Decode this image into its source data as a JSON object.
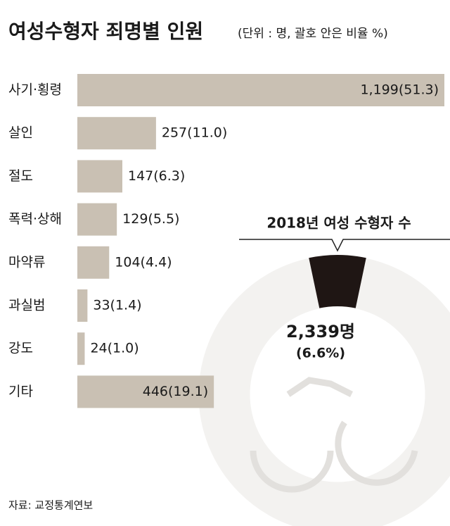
{
  "chart_data": {
    "type": "barh",
    "title": "여성수형자 죄명별 인원",
    "subtitle": "(단위 : 명, 괄호 안은 비율 %)",
    "categories": [
      "사기·횡령",
      "살인",
      "절도",
      "폭력·상해",
      "마약류",
      "과실범",
      "강도",
      "기타"
    ],
    "values": [
      1199,
      257,
      147,
      129,
      104,
      33,
      24,
      446
    ],
    "value_labels": [
      "1,199(51.3)",
      "257(11.0)",
      "147(6.3)",
      "129(5.5)",
      "104(4.4)",
      "33(1.4)",
      "24(1.0)",
      "446(19.1)"
    ],
    "color": "#c9c0b3",
    "highlight": {
      "title": "2018년 여성 수형자 수",
      "value_label": "2,339명",
      "share": 6.6,
      "share_label": "(6.6%)",
      "color": "#1f1614",
      "ring_color": "#f3f2f0"
    },
    "source": "자료: 교정통계연보"
  }
}
